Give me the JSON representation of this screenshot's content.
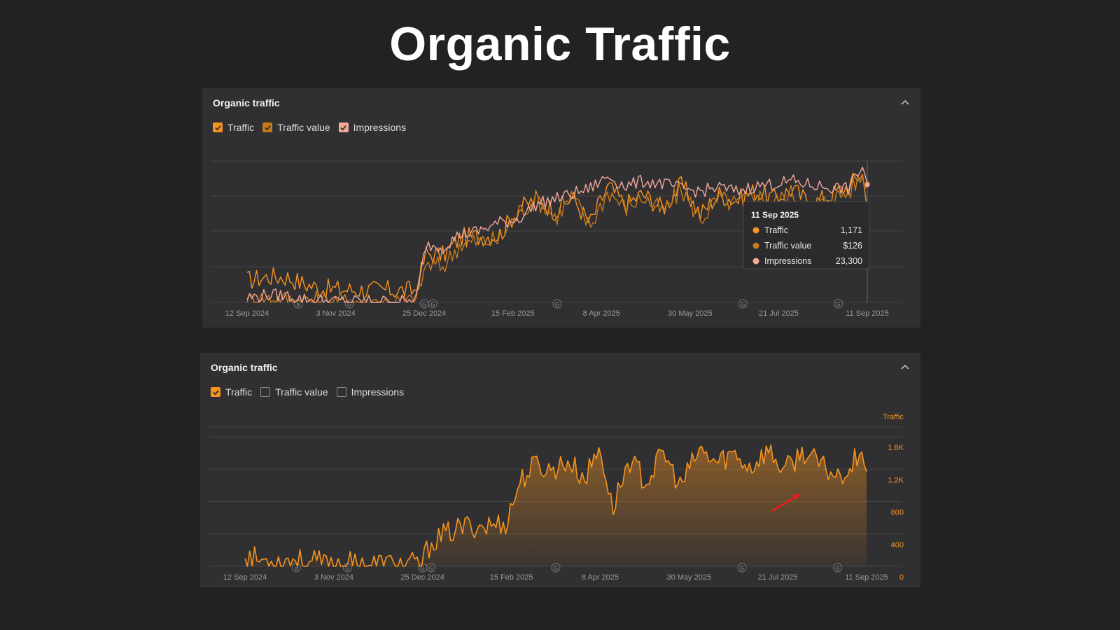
{
  "page": {
    "title": "Organic Traffic"
  },
  "colors": {
    "traffic": "#f7931e",
    "traffic_value": "#c77a1c",
    "impressions": "#f4a79a",
    "background": "#222222",
    "panel": "#303032",
    "grid": "#444446",
    "axis_text": "#9a9a9a",
    "arrow": "#e02020"
  },
  "panel1": {
    "title": "Organic traffic",
    "legend": [
      {
        "label": "Traffic",
        "checked": true,
        "color": "#f7931e"
      },
      {
        "label": "Traffic value",
        "checked": true,
        "color": "#c77a1c"
      },
      {
        "label": "Impressions",
        "checked": true,
        "color": "#f4a79a"
      }
    ],
    "tooltip": {
      "date": "11 Sep 2025",
      "rows": [
        {
          "label": "Traffic",
          "value": "1,171",
          "color": "#f7931e"
        },
        {
          "label": "Traffic value",
          "value": "$126",
          "color": "#c77a1c"
        },
        {
          "label": "Impressions",
          "value": "23,300",
          "color": "#f4a79a"
        }
      ]
    }
  },
  "panel2": {
    "title": "Organic traffic",
    "legend": [
      {
        "label": "Traffic",
        "checked": true,
        "color": "#f7931e"
      },
      {
        "label": "Traffic value",
        "checked": false,
        "color": "#c77a1c"
      },
      {
        "label": "Impressions",
        "checked": false,
        "color": "#f4a79a"
      }
    ],
    "axis_title": "Traffic",
    "annotation_arrow": true
  },
  "chart_data": [
    {
      "type": "line",
      "title": "Organic traffic",
      "xlabel": "",
      "ylabel": "",
      "x_tick_labels": [
        "12 Sep 2024",
        "3 Nov 2024",
        "25 Dec 2024",
        "15 Feb 2025",
        "8 Apr 2025",
        "30 May 2025",
        "21 Jul 2025",
        "11 Sep 2025"
      ],
      "y_axis_visible": false,
      "grid": true,
      "markers": [
        {
          "label": "a",
          "date": "2024-10-12"
        },
        {
          "label": "G",
          "date": "2024-11-11"
        },
        {
          "label": "G",
          "date": "2024-12-25"
        },
        {
          "label": "G",
          "date": "2024-12-30"
        },
        {
          "label": "G",
          "date": "2025-03-13"
        },
        {
          "label": "G",
          "date": "2025-06-30"
        },
        {
          "label": "G",
          "date": "2025-08-25"
        }
      ],
      "dates": [
        "2024-09-12",
        "2024-09-25",
        "2024-10-06",
        "2024-10-16",
        "2024-10-28",
        "2024-11-15",
        "2024-12-05",
        "2024-12-20",
        "2024-12-26",
        "2025-01-05",
        "2025-01-15",
        "2025-01-25",
        "2025-02-07",
        "2025-02-18",
        "2025-03-01",
        "2025-03-12",
        "2025-03-22",
        "2025-04-01",
        "2025-04-12",
        "2025-04-22",
        "2025-05-02",
        "2025-05-14",
        "2025-05-25",
        "2025-06-05",
        "2025-06-16",
        "2025-06-26",
        "2025-07-07",
        "2025-07-18",
        "2025-07-29",
        "2025-08-09",
        "2025-08-20",
        "2025-08-31",
        "2025-09-08",
        "2025-09-11"
      ],
      "series": [
        {
          "name": "Traffic",
          "values": [
            280,
            330,
            320,
            230,
            170,
            160,
            155,
            150,
            620,
            600,
            820,
            840,
            860,
            1180,
            1320,
            1160,
            1340,
            1000,
            1480,
            1240,
            1380,
            1200,
            1500,
            1120,
            1380,
            1300,
            1420,
            1320,
            1440,
            1250,
            1360,
            1480,
            1660,
            1171
          ]
        },
        {
          "name": "Traffic value",
          "values": [
            2,
            4,
            3,
            2,
            1,
            1,
            1,
            1,
            40,
            38,
            62,
            64,
            66,
            95,
            110,
            90,
            112,
            80,
            118,
            100,
            112,
            96,
            120,
            88,
            110,
            104,
            114,
            106,
            116,
            100,
            108,
            118,
            134,
            126
          ]
        },
        {
          "name": "Impressions",
          "values": [
            900,
            1500,
            1300,
            600,
            300,
            200,
            200,
            200,
            11500,
            11000,
            13500,
            14000,
            15800,
            16500,
            19500,
            20500,
            21500,
            22500,
            25000,
            23000,
            24000,
            23500,
            22500,
            22000,
            22800,
            22000,
            23000,
            23500,
            24000,
            23200,
            22800,
            22500,
            27000,
            23300
          ]
        }
      ]
    },
    {
      "type": "area",
      "title": "Organic traffic",
      "xlabel": "",
      "ylabel": "Traffic",
      "x_tick_labels": [
        "12 Sep 2024",
        "3 Nov 2024",
        "25 Dec 2024",
        "15 Feb 2025",
        "8 Apr 2025",
        "30 May 2025",
        "21 Jul 2025",
        "11 Sep 2025"
      ],
      "y_ticks": [
        "0",
        "400",
        "800",
        "1.2K",
        "1.6K"
      ],
      "ylim": [
        0,
        1600
      ],
      "y_tick_values": [
        0,
        400,
        800,
        1200,
        1600
      ],
      "grid": true,
      "markers": [
        {
          "label": "a",
          "date": "2024-10-12"
        },
        {
          "label": "G",
          "date": "2024-11-11"
        },
        {
          "label": "G",
          "date": "2024-12-25"
        },
        {
          "label": "G",
          "date": "2024-12-30"
        },
        {
          "label": "G",
          "date": "2025-03-13"
        },
        {
          "label": "G",
          "date": "2025-06-30"
        },
        {
          "label": "G",
          "date": "2025-08-25"
        }
      ],
      "dates": [
        "2024-09-12",
        "2024-09-20",
        "2024-10-01",
        "2024-10-10",
        "2024-10-20",
        "2024-11-01",
        "2024-11-20",
        "2024-12-10",
        "2024-12-24",
        "2024-12-30",
        "2025-01-10",
        "2025-01-20",
        "2025-02-01",
        "2025-02-12",
        "2025-02-20",
        "2025-03-01",
        "2025-03-10",
        "2025-03-20",
        "2025-03-30",
        "2025-04-08",
        "2025-04-15",
        "2025-04-25",
        "2025-05-05",
        "2025-05-15",
        "2025-05-25",
        "2025-06-05",
        "2025-06-15",
        "2025-06-25",
        "2025-07-05",
        "2025-07-15",
        "2025-07-25",
        "2025-08-05",
        "2025-08-15",
        "2025-08-25",
        "2025-09-03",
        "2025-09-08",
        "2025-09-11"
      ],
      "series": [
        {
          "name": "Traffic",
          "values": [
            150,
            80,
            60,
            90,
            50,
            40,
            35,
            30,
            20,
            300,
            420,
            500,
            500,
            540,
            1050,
            1260,
            1180,
            1300,
            1080,
            1480,
            700,
            1320,
            1040,
            1400,
            980,
            1430,
            1280,
            1400,
            1220,
            1440,
            1180,
            1420,
            1240,
            1120,
            1260,
            1520,
            1171
          ]
        }
      ]
    }
  ]
}
